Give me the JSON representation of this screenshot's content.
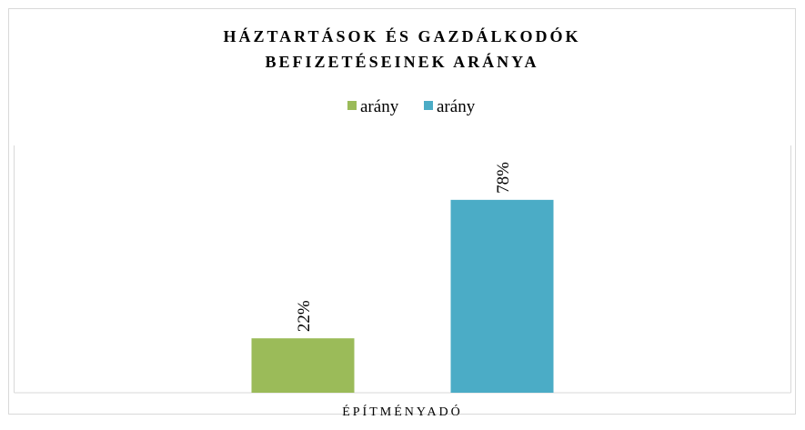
{
  "chart_data": {
    "type": "bar",
    "title": [
      "HÁZTARTÁSOK ÉS GAZDÁLKODÓK",
      "BEFIZETÉSEINEK ARÁNYA"
    ],
    "categories": [
      "ÉPÍTMÉNYADÓ"
    ],
    "series": [
      {
        "name": "arány",
        "color": "#9bbb59",
        "values": [
          22
        ],
        "value_labels": [
          "22%"
        ]
      },
      {
        "name": "arány",
        "color": "#4bacc6",
        "values": [
          78
        ],
        "value_labels": [
          "78%"
        ]
      }
    ],
    "ylim": [
      0,
      100
    ],
    "legend": "top"
  }
}
